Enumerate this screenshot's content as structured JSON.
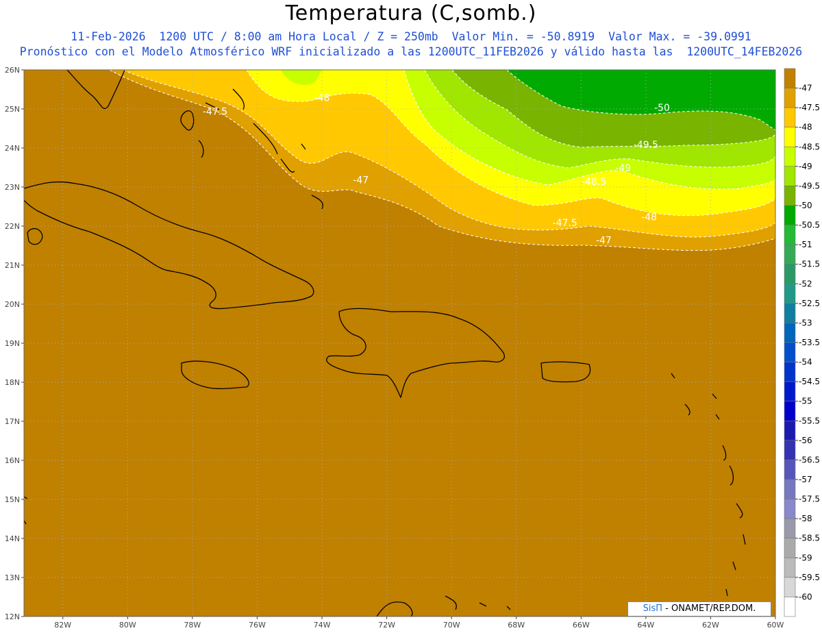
{
  "header": {
    "title": "Temperatura (C,somb.)",
    "line1": "11-Feb-2026  1200 UTC / 8:00 am Hora Local / Z = 250mb  Valor Min. = -50.8919  Valor Max. = -39.0991",
    "line2": "Pronóstico con el Modelo Atmosférico WRF inicializado a las 1200UTC_11FEB2026 y válido hasta las  1200UTC_14FEB2026"
  },
  "map": {
    "lon_range": [
      -83.2,
      -60
    ],
    "lat_range": [
      12,
      26
    ],
    "background_color": "#c08000",
    "lat_ticks": [
      "12N",
      "13N",
      "14N",
      "15N",
      "16N",
      "17N",
      "18N",
      "19N",
      "20N",
      "21N",
      "22N",
      "23N",
      "24N",
      "25N",
      "26N"
    ],
    "lon_ticks": [
      "82W",
      "80W",
      "78W",
      "76W",
      "74W",
      "72W",
      "70W",
      "68W",
      "66W",
      "64W",
      "62W",
      "60W"
    ],
    "contour_labels": [
      {
        "text": "-47.5",
        "lon": -77.3,
        "lat": 24.85
      },
      {
        "text": "-48",
        "lon": -74.0,
        "lat": 25.2
      },
      {
        "text": "-47",
        "lon": -72.8,
        "lat": 23.1
      },
      {
        "text": "-50",
        "lon": -63.5,
        "lat": 24.95
      },
      {
        "text": "-49.5",
        "lon": -64.0,
        "lat": 24.0
      },
      {
        "text": "-49",
        "lon": -64.7,
        "lat": 23.4
      },
      {
        "text": "-48.5",
        "lon": -65.6,
        "lat": 23.05
      },
      {
        "text": "-47.5",
        "lon": -66.5,
        "lat": 22.0
      },
      {
        "text": "-48",
        "lon": -63.9,
        "lat": 22.15
      },
      {
        "text": "-47",
        "lon": -65.3,
        "lat": 21.55
      }
    ]
  },
  "colorbar": {
    "labels": [
      "-47",
      "-47.5",
      "-48",
      "-48.5",
      "-49",
      "-49.5",
      "-50",
      "-50.5",
      "-51",
      "-51.5",
      "-52",
      "-52.5",
      "-53",
      "-53.5",
      "-54",
      "-54.5",
      "-55",
      "-55.5",
      "-56",
      "-56.5",
      "-57",
      "-57.5",
      "-58",
      "-58.5",
      "-59",
      "-59.5",
      "-60"
    ],
    "colors": [
      "#c08000",
      "#e0a000",
      "#ffc800",
      "#ffff00",
      "#c8ff00",
      "#a0e600",
      "#78b400",
      "#00aa00",
      "#22bb33",
      "#33aa55",
      "#2a9966",
      "#209988",
      "#107fa0",
      "#0066bb",
      "#0050cc",
      "#0033cc",
      "#0018cc",
      "#0000cc",
      "#1a1ab3",
      "#3333b3",
      "#5555bb",
      "#7777c0",
      "#8888cc",
      "#9999aa",
      "#aaaaaa",
      "#bbbbbb",
      "#d8d8d8",
      "#ffffff"
    ]
  },
  "credit": {
    "brand": "SisΠ",
    "text": " - ONAMET/REP.DOM."
  }
}
